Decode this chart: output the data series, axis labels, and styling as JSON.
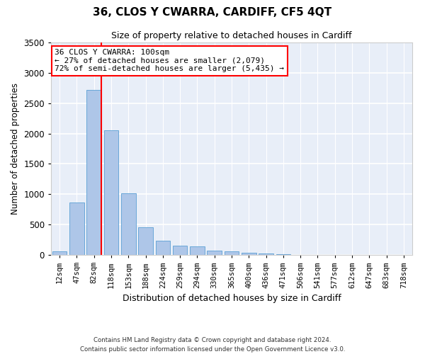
{
  "title": "36, CLOS Y CWARRA, CARDIFF, CF5 4QT",
  "subtitle": "Size of property relative to detached houses in Cardiff",
  "xlabel": "Distribution of detached houses by size in Cardiff",
  "ylabel": "Number of detached properties",
  "categories": [
    "12sqm",
    "47sqm",
    "82sqm",
    "118sqm",
    "153sqm",
    "188sqm",
    "224sqm",
    "259sqm",
    "294sqm",
    "330sqm",
    "365sqm",
    "400sqm",
    "436sqm",
    "471sqm",
    "506sqm",
    "541sqm",
    "577sqm",
    "612sqm",
    "647sqm",
    "683sqm",
    "718sqm"
  ],
  "values": [
    62,
    860,
    2720,
    2050,
    1010,
    460,
    230,
    150,
    140,
    65,
    55,
    35,
    25,
    15,
    5,
    2,
    0,
    0,
    0,
    0,
    0
  ],
  "bar_color": "#aec6e8",
  "bar_edge_color": "#5a9fd4",
  "background_color": "#e8eef8",
  "grid_color": "#ffffff",
  "ylim": [
    0,
    3500
  ],
  "yticks": [
    0,
    500,
    1000,
    1500,
    2000,
    2500,
    3000,
    3500
  ],
  "red_line_x": 2.42,
  "annotation_title": "36 CLOS Y CWARRA: 100sqm",
  "annotation_line1": "← 27% of detached houses are smaller (2,079)",
  "annotation_line2": "72% of semi-detached houses are larger (5,435) →",
  "footer1": "Contains HM Land Registry data © Crown copyright and database right 2024.",
  "footer2": "Contains public sector information licensed under the Open Government Licence v3.0."
}
